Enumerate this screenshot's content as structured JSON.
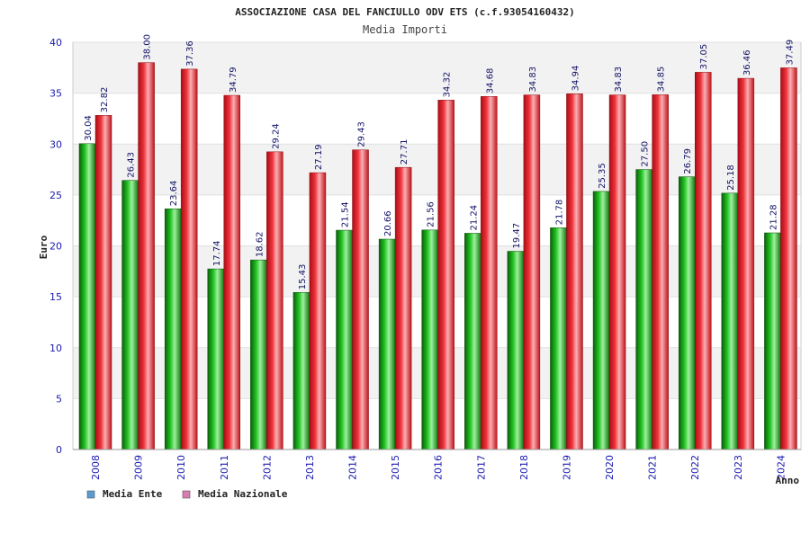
{
  "chart_data": {
    "type": "bar",
    "title": "ASSOCIAZIONE CASA DEL FANCIULLO ODV ETS (c.f.93054160432)",
    "subtitle": "Media Importi",
    "xlabel": "Anno",
    "ylabel": "Euro",
    "ylim": [
      0,
      40
    ],
    "y_ticks": [
      0,
      5,
      10,
      15,
      20,
      25,
      30,
      35,
      40
    ],
    "grid": true,
    "legend_position": "bottom-left",
    "categories": [
      "2008",
      "2009",
      "2010",
      "2011",
      "2012",
      "2013",
      "2014",
      "2015",
      "2016",
      "2017",
      "2018",
      "2019",
      "2020",
      "2021",
      "2022",
      "2023",
      "2024"
    ],
    "series": [
      {
        "name": "Media Ente",
        "bar_color": "#1fa81f",
        "legend_color": "#5b9bd5",
        "values": [
          30.04,
          26.43,
          23.64,
          17.74,
          18.62,
          15.43,
          21.54,
          20.66,
          21.56,
          21.24,
          19.47,
          21.78,
          25.35,
          27.5,
          26.79,
          25.18,
          21.28
        ],
        "labels": [
          "30.04",
          "26.43",
          "23.64",
          "17.74",
          "18.62",
          "15.43",
          "21.54",
          "20.66",
          "21.56",
          "21.24",
          "19.47",
          "21.78",
          "25.35",
          "27.50",
          "26.79",
          "25.18",
          "21.28"
        ]
      },
      {
        "name": "Media Nazionale",
        "bar_color": "#e8202a",
        "legend_color": "#d97cb0",
        "values": [
          32.82,
          38.0,
          37.36,
          34.79,
          29.24,
          27.19,
          29.43,
          27.71,
          34.32,
          34.68,
          34.83,
          34.94,
          34.83,
          34.85,
          37.05,
          36.46,
          37.49
        ],
        "labels": [
          "32.82",
          "38.00",
          "37.36",
          "34.79",
          "29.24",
          "27.19",
          "29.43",
          "27.71",
          "34.32",
          "34.68",
          "34.83",
          "34.94",
          "34.83",
          "34.85",
          "37.05",
          "36.46",
          "37.49"
        ]
      }
    ]
  }
}
